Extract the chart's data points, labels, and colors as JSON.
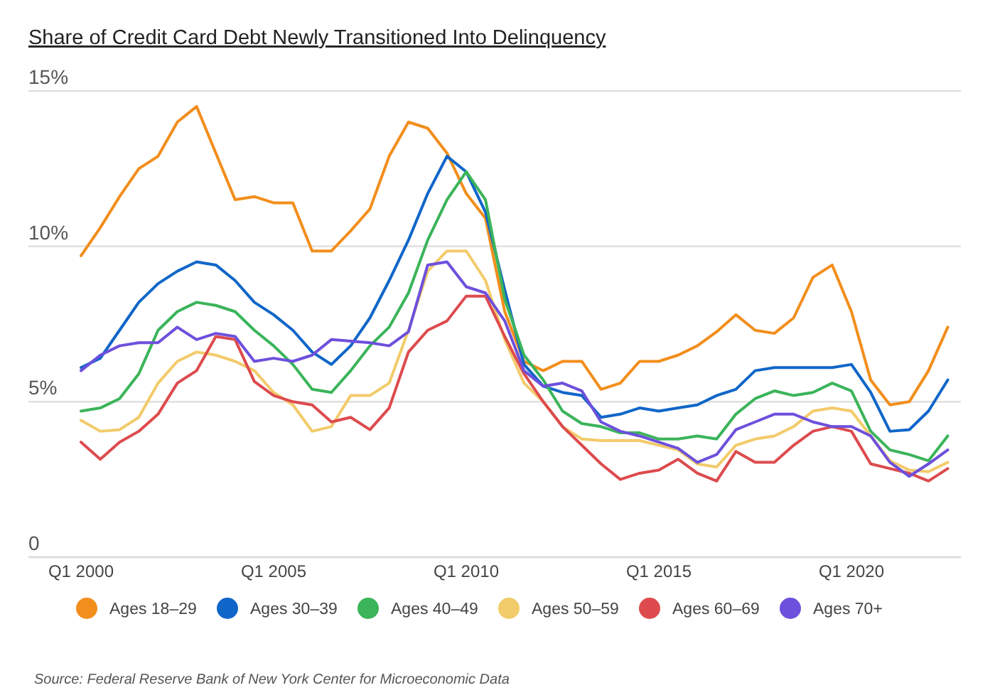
{
  "chart_data": {
    "type": "line",
    "title": "Share of Credit Card Debt Newly Transitioned Into Delinquency",
    "categories": [
      "Q1 2000",
      null,
      null,
      null,
      null,
      null,
      null,
      null,
      null,
      null,
      "Q1 2005",
      null,
      null,
      null,
      null,
      null,
      null,
      null,
      null,
      null,
      "Q1 2010",
      null,
      null,
      null,
      null,
      null,
      null,
      null,
      null,
      null,
      "Q1 2015",
      null,
      null,
      null,
      null,
      null,
      null,
      null,
      null,
      null,
      "Q1 2020",
      null,
      null,
      null,
      null,
      null
    ],
    "series": [
      {
        "name": "Ages 18–29",
        "color": "#f28e1c",
        "values": [
          9.7,
          10.6,
          11.6,
          12.5,
          12.9,
          14.0,
          14.5,
          13.0,
          11.5,
          11.6,
          11.4,
          11.4,
          9.85,
          9.85,
          10.5,
          11.2,
          12.9,
          14.0,
          13.8,
          13.0,
          11.7,
          10.9,
          7.9,
          6.3,
          6.0,
          6.3,
          6.3,
          5.4,
          5.6,
          6.3,
          6.3,
          6.5,
          6.8,
          7.25,
          7.8,
          7.3,
          7.2,
          7.7,
          9.0,
          9.4,
          7.9,
          5.7,
          4.9,
          5.0,
          6.0,
          7.4
        ]
      },
      {
        "name": "Ages 30–39",
        "color": "#1066c8",
        "values": [
          6.1,
          6.4,
          7.3,
          8.2,
          8.8,
          9.2,
          9.5,
          9.4,
          8.9,
          8.2,
          7.8,
          7.3,
          6.6,
          6.2,
          6.8,
          7.7,
          8.9,
          10.2,
          11.7,
          12.9,
          12.4,
          11.1,
          8.6,
          6.2,
          5.5,
          5.3,
          5.2,
          4.5,
          4.6,
          4.8,
          4.7,
          4.8,
          4.9,
          5.2,
          5.4,
          6.0,
          6.1,
          6.1,
          6.1,
          6.1,
          6.2,
          5.3,
          4.05,
          4.1,
          4.7,
          5.7
        ]
      },
      {
        "name": "Ages 40–49",
        "color": "#3bb45a",
        "values": [
          4.7,
          4.8,
          5.1,
          5.9,
          7.3,
          7.9,
          8.2,
          8.1,
          7.9,
          7.3,
          6.8,
          6.2,
          5.4,
          5.3,
          6.0,
          6.8,
          7.4,
          8.5,
          10.2,
          11.5,
          12.4,
          11.5,
          8.3,
          6.5,
          5.7,
          4.7,
          4.3,
          4.2,
          4.0,
          4.0,
          3.8,
          3.8,
          3.9,
          3.8,
          4.6,
          5.1,
          5.35,
          5.2,
          5.3,
          5.6,
          5.35,
          4.05,
          3.45,
          3.3,
          3.1,
          3.9
        ]
      },
      {
        "name": "Ages 50–59",
        "color": "#f2cb6a",
        "values": [
          4.4,
          4.05,
          4.1,
          4.5,
          5.6,
          6.3,
          6.6,
          6.5,
          6.3,
          6.0,
          5.3,
          4.9,
          4.05,
          4.2,
          5.2,
          5.2,
          5.6,
          7.3,
          9.2,
          9.85,
          9.85,
          8.9,
          7.0,
          5.6,
          5.0,
          4.2,
          3.8,
          3.75,
          3.75,
          3.75,
          3.6,
          3.45,
          3.0,
          2.9,
          3.6,
          3.8,
          3.9,
          4.2,
          4.7,
          4.8,
          4.7,
          3.9,
          3.1,
          2.8,
          2.75,
          3.05
        ]
      },
      {
        "name": "Ages 60–69",
        "color": "#dd4b4e",
        "values": [
          3.7,
          3.15,
          3.7,
          4.05,
          4.6,
          5.6,
          6.0,
          7.1,
          7.0,
          5.65,
          5.2,
          5.0,
          4.9,
          4.35,
          4.5,
          4.1,
          4.8,
          6.6,
          7.3,
          7.6,
          8.4,
          8.4,
          7.1,
          5.9,
          5.0,
          4.2,
          3.6,
          3.0,
          2.5,
          2.7,
          2.8,
          3.15,
          2.7,
          2.45,
          3.4,
          3.05,
          3.05,
          3.6,
          4.05,
          4.2,
          4.05,
          3.0,
          2.85,
          2.7,
          2.45,
          2.85
        ]
      },
      {
        "name": "Ages 70+",
        "color": "#6d50dc",
        "values": [
          6.0,
          6.5,
          6.8,
          6.9,
          6.9,
          7.4,
          7.0,
          7.2,
          7.1,
          6.3,
          6.4,
          6.3,
          6.5,
          7.0,
          6.95,
          6.9,
          6.8,
          7.25,
          9.4,
          9.5,
          8.7,
          8.5,
          7.6,
          6.0,
          5.5,
          5.6,
          5.35,
          4.35,
          4.05,
          3.9,
          3.7,
          3.5,
          3.05,
          3.3,
          4.1,
          4.35,
          4.6,
          4.6,
          4.35,
          4.2,
          4.2,
          3.9,
          3.05,
          2.6,
          3.0,
          3.45
        ]
      }
    ],
    "ylim": [
      0,
      15
    ],
    "yticks": [
      {
        "value": 0,
        "label": "0"
      },
      {
        "value": 5,
        "label": "5%"
      },
      {
        "value": 10,
        "label": "10%"
      },
      {
        "value": 15,
        "label": "15%"
      }
    ],
    "grid": "y",
    "legend": "bottom",
    "marker": "none",
    "line_style": "solid",
    "annotations": [
      "Source: Federal Reserve Bank of New York Center for Microeconomic Data"
    ]
  }
}
